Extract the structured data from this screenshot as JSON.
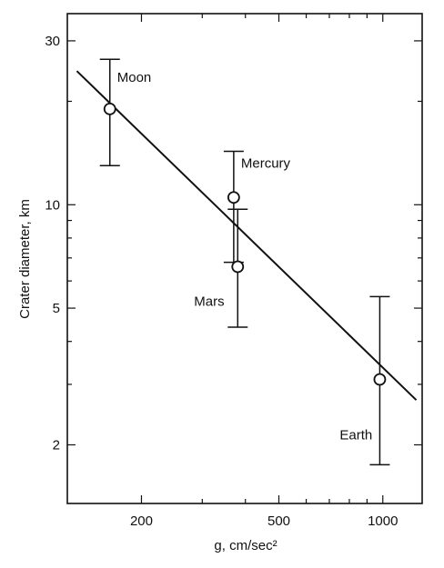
{
  "chart_data": {
    "type": "scatter",
    "title": "",
    "xlabel": "g, cm/sec²",
    "ylabel": "Crater diameter, km",
    "xscale": "log",
    "yscale": "log",
    "xlim": [
      122,
      1300
    ],
    "ylim": [
      1.35,
      36
    ],
    "x_ticks": [
      200,
      500,
      1000
    ],
    "x_tick_labels": [
      "200",
      "500",
      "1000"
    ],
    "y_ticks": [
      2,
      5,
      10,
      30
    ],
    "y_tick_labels": [
      "2",
      "5",
      "10",
      "30"
    ],
    "grid": false,
    "points": [
      {
        "label": "Moon",
        "x": 162,
        "y": 19.0,
        "y_low": 13.0,
        "y_high": 26.5
      },
      {
        "label": "Mercury",
        "x": 370,
        "y": 10.5,
        "y_low": 6.8,
        "y_high": 14.3
      },
      {
        "label": "Mars",
        "x": 380,
        "y": 6.6,
        "y_low": 4.4,
        "y_high": 9.7
      },
      {
        "label": "Earth",
        "x": 980,
        "y": 3.1,
        "y_low": 1.75,
        "y_high": 5.4
      }
    ],
    "fit_line": {
      "from": {
        "x": 130,
        "y": 24.5
      },
      "to": {
        "x": 1250,
        "y": 2.7
      }
    }
  }
}
